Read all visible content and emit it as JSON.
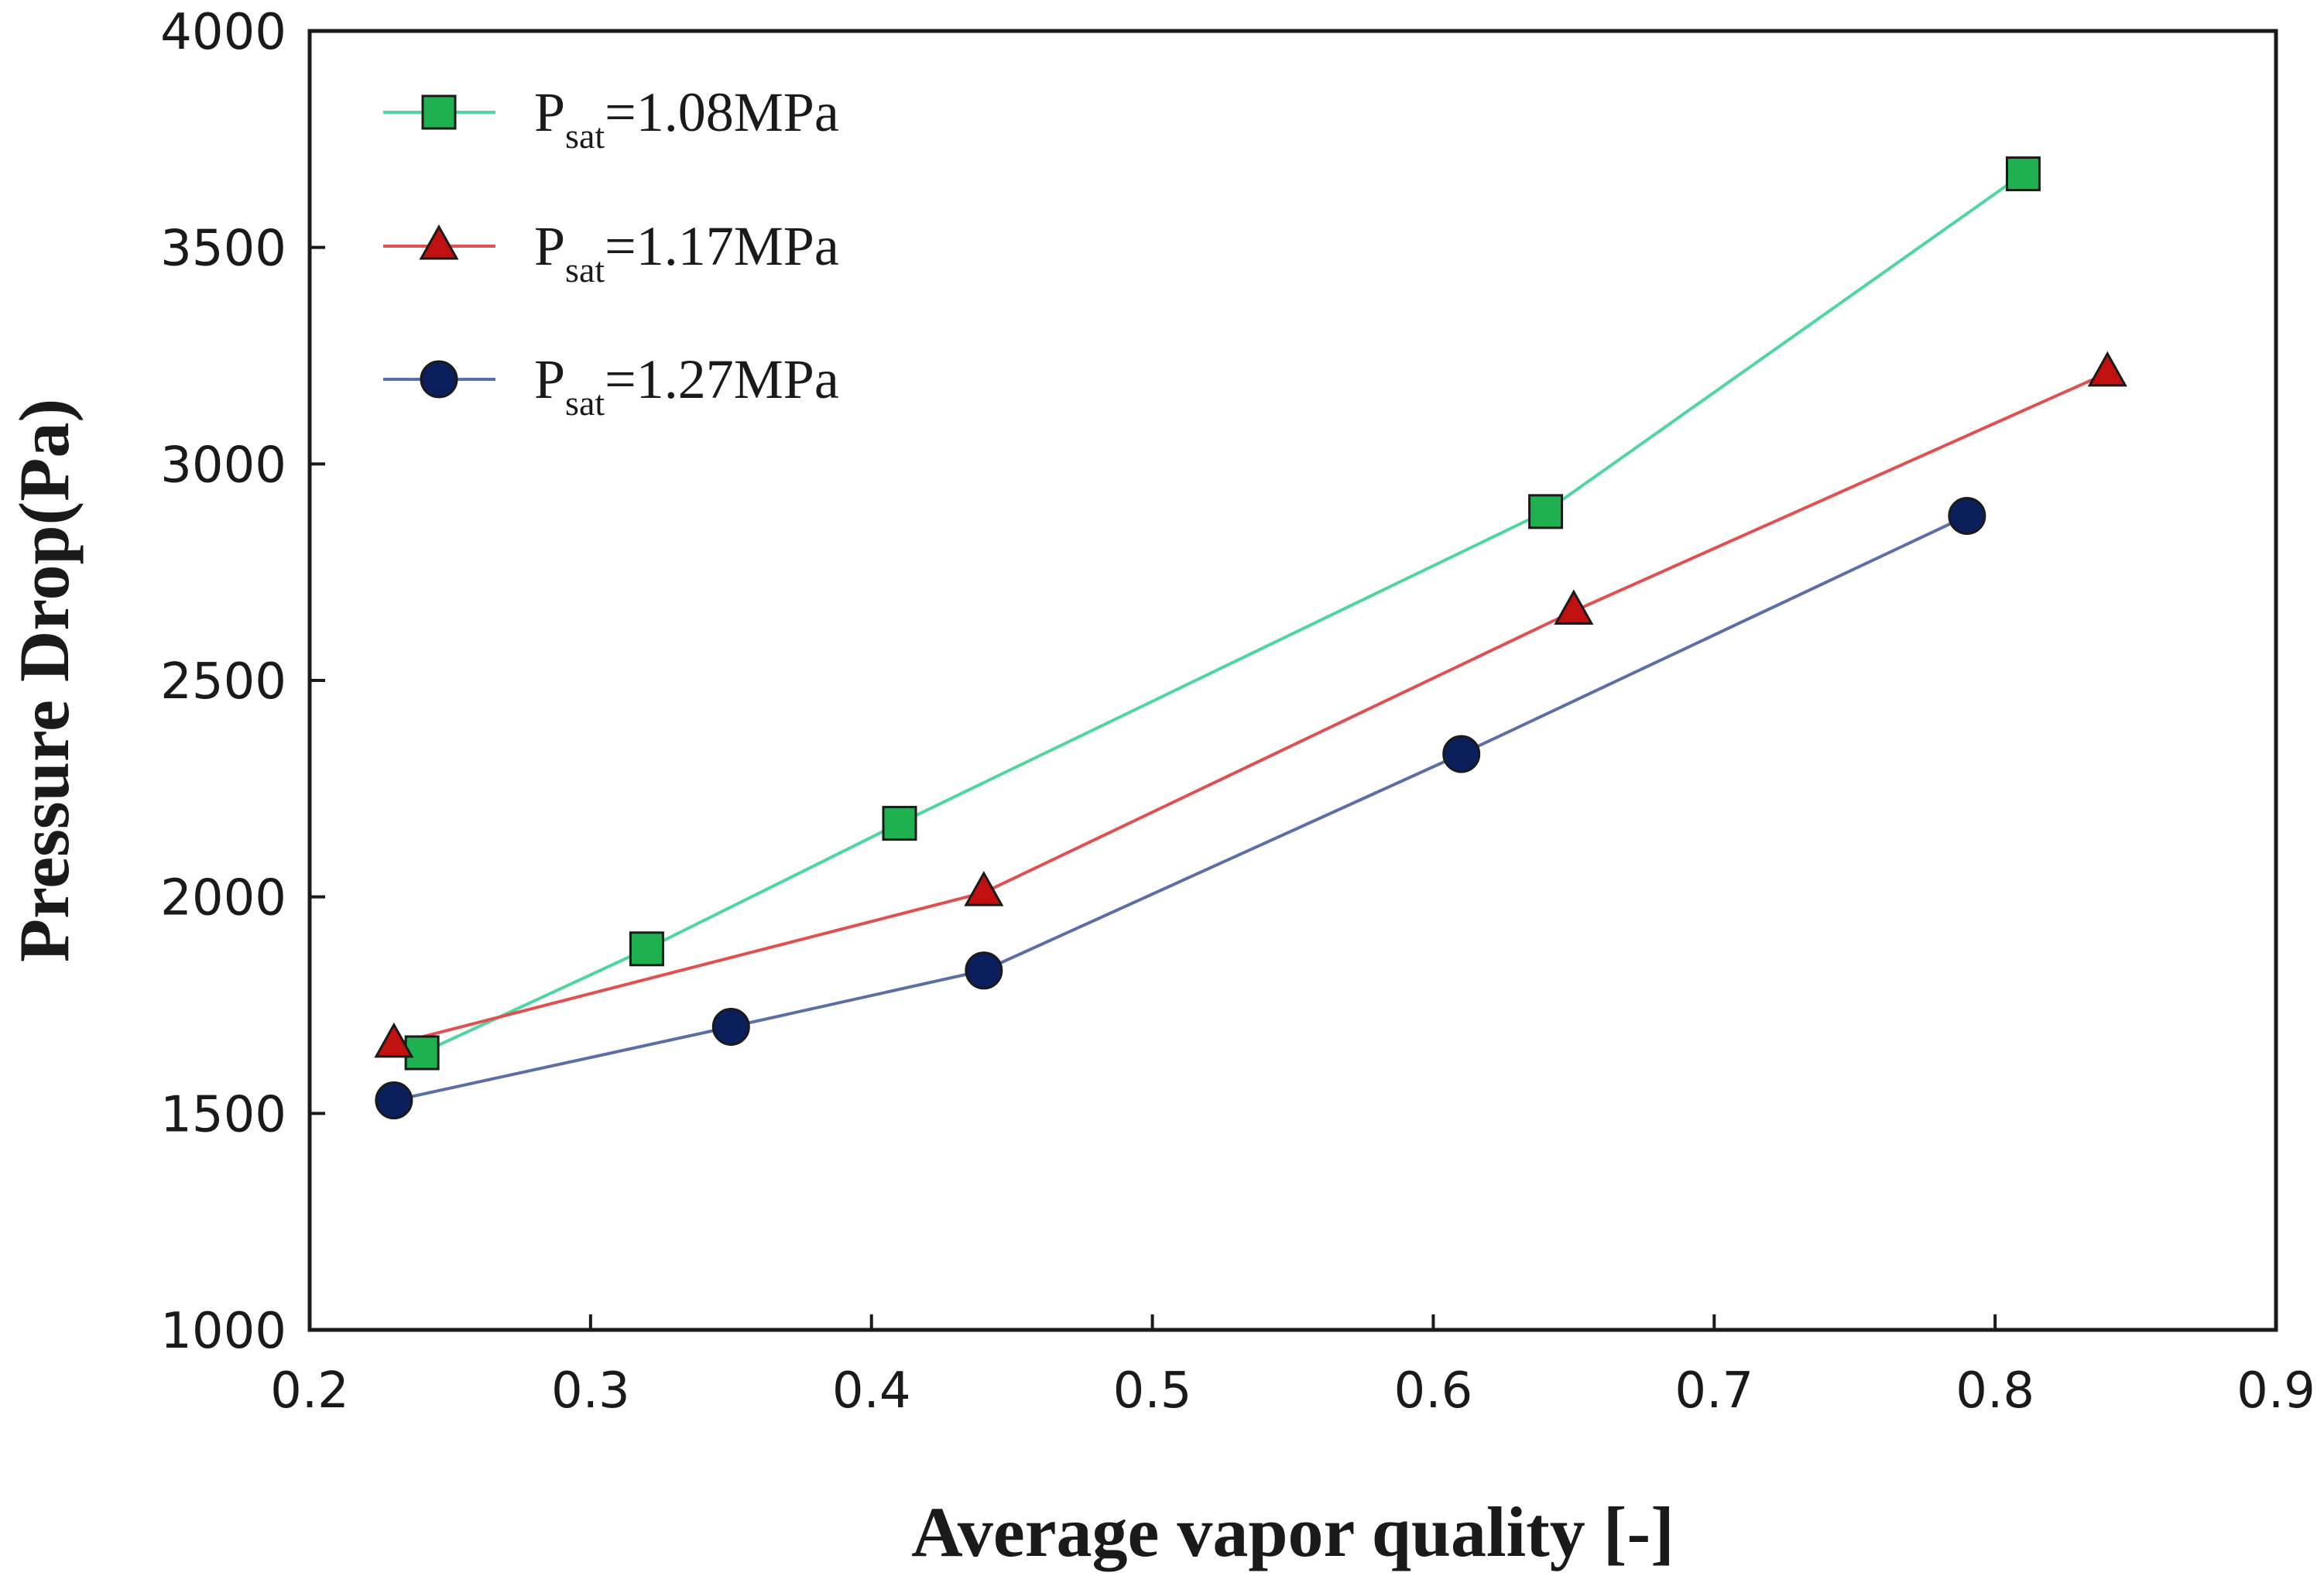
{
  "chart_data": {
    "type": "line",
    "title": "",
    "xlabel": "Average vapor quality [-]",
    "ylabel": "Pressure Drop(Pa)",
    "xlim": [
      0.2,
      0.9
    ],
    "ylim": [
      1000,
      4000
    ],
    "xticks": [
      0.2,
      0.3,
      0.4,
      0.5,
      0.6,
      0.7,
      0.8,
      0.9
    ],
    "yticks": [
      1000,
      1500,
      2000,
      2500,
      3000,
      3500,
      4000
    ],
    "xtick_labels": [
      "0.2",
      "0.3",
      "0.4",
      "0.5",
      "0.6",
      "0.7",
      "0.8",
      "0.9"
    ],
    "ytick_labels": [
      "1000",
      "1500",
      "2000",
      "2500",
      "3000",
      "3500",
      "4000"
    ],
    "grid": false,
    "legend_position": "top-left",
    "series": [
      {
        "name": "Psat=1.08MPa",
        "legend_main": "P",
        "legend_sub": "sat",
        "legend_rest": "=1.08MPa",
        "marker": "square",
        "line_color": "#4fd6a0",
        "marker_color": "#1fb050",
        "x": [
          0.24,
          0.32,
          0.41,
          0.64,
          0.81
        ],
        "y": [
          1640,
          1880,
          2170,
          2890,
          3670
        ]
      },
      {
        "name": "Psat=1.17MPa",
        "legend_main": "P",
        "legend_sub": "sat",
        "legend_rest": "=1.17MPa",
        "marker": "triangle",
        "line_color": "#e05050",
        "marker_color": "#c01010",
        "x": [
          0.23,
          0.44,
          0.65,
          0.84
        ],
        "y": [
          1660,
          2010,
          2660,
          3210
        ]
      },
      {
        "name": "Psat=1.27MPa",
        "legend_main": "P",
        "legend_sub": "sat",
        "legend_rest": "=1.27MPa",
        "marker": "circle",
        "line_color": "#5a6ea8",
        "marker_color": "#0b1f5c",
        "x": [
          0.23,
          0.35,
          0.44,
          0.61,
          0.79
        ],
        "y": [
          1530,
          1700,
          1830,
          2330,
          2880
        ]
      }
    ]
  }
}
